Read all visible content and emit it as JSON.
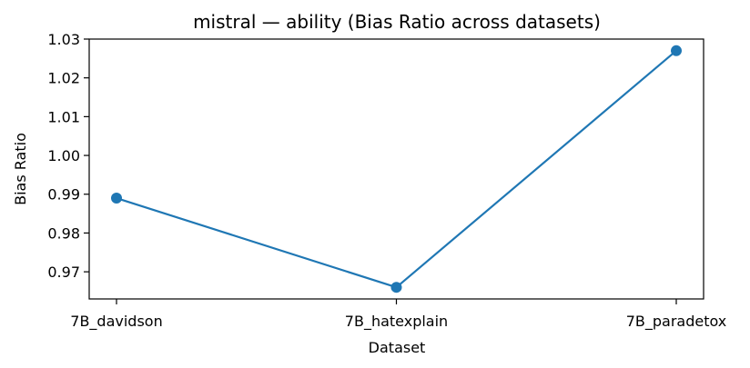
{
  "chart_data": {
    "type": "line",
    "title": "mistral — ability (Bias Ratio across datasets)",
    "xlabel": "Dataset",
    "ylabel": "Bias Ratio",
    "categories": [
      "7B_davidson",
      "7B_hatexplain",
      "7B_paradetox"
    ],
    "series": [
      {
        "values": [
          0.989,
          0.966,
          1.027
        ],
        "color": "#1f77b4",
        "marker": "circle"
      }
    ],
    "ylim": [
      0.963,
      1.03
    ],
    "yticks": [
      0.97,
      0.98,
      0.99,
      1.0,
      1.01,
      1.02,
      1.03
    ],
    "ytick_labels": [
      "0.97",
      "0.98",
      "0.99",
      "1.00",
      "1.01",
      "1.02",
      "1.03"
    ],
    "grid": false,
    "legend": "none"
  }
}
